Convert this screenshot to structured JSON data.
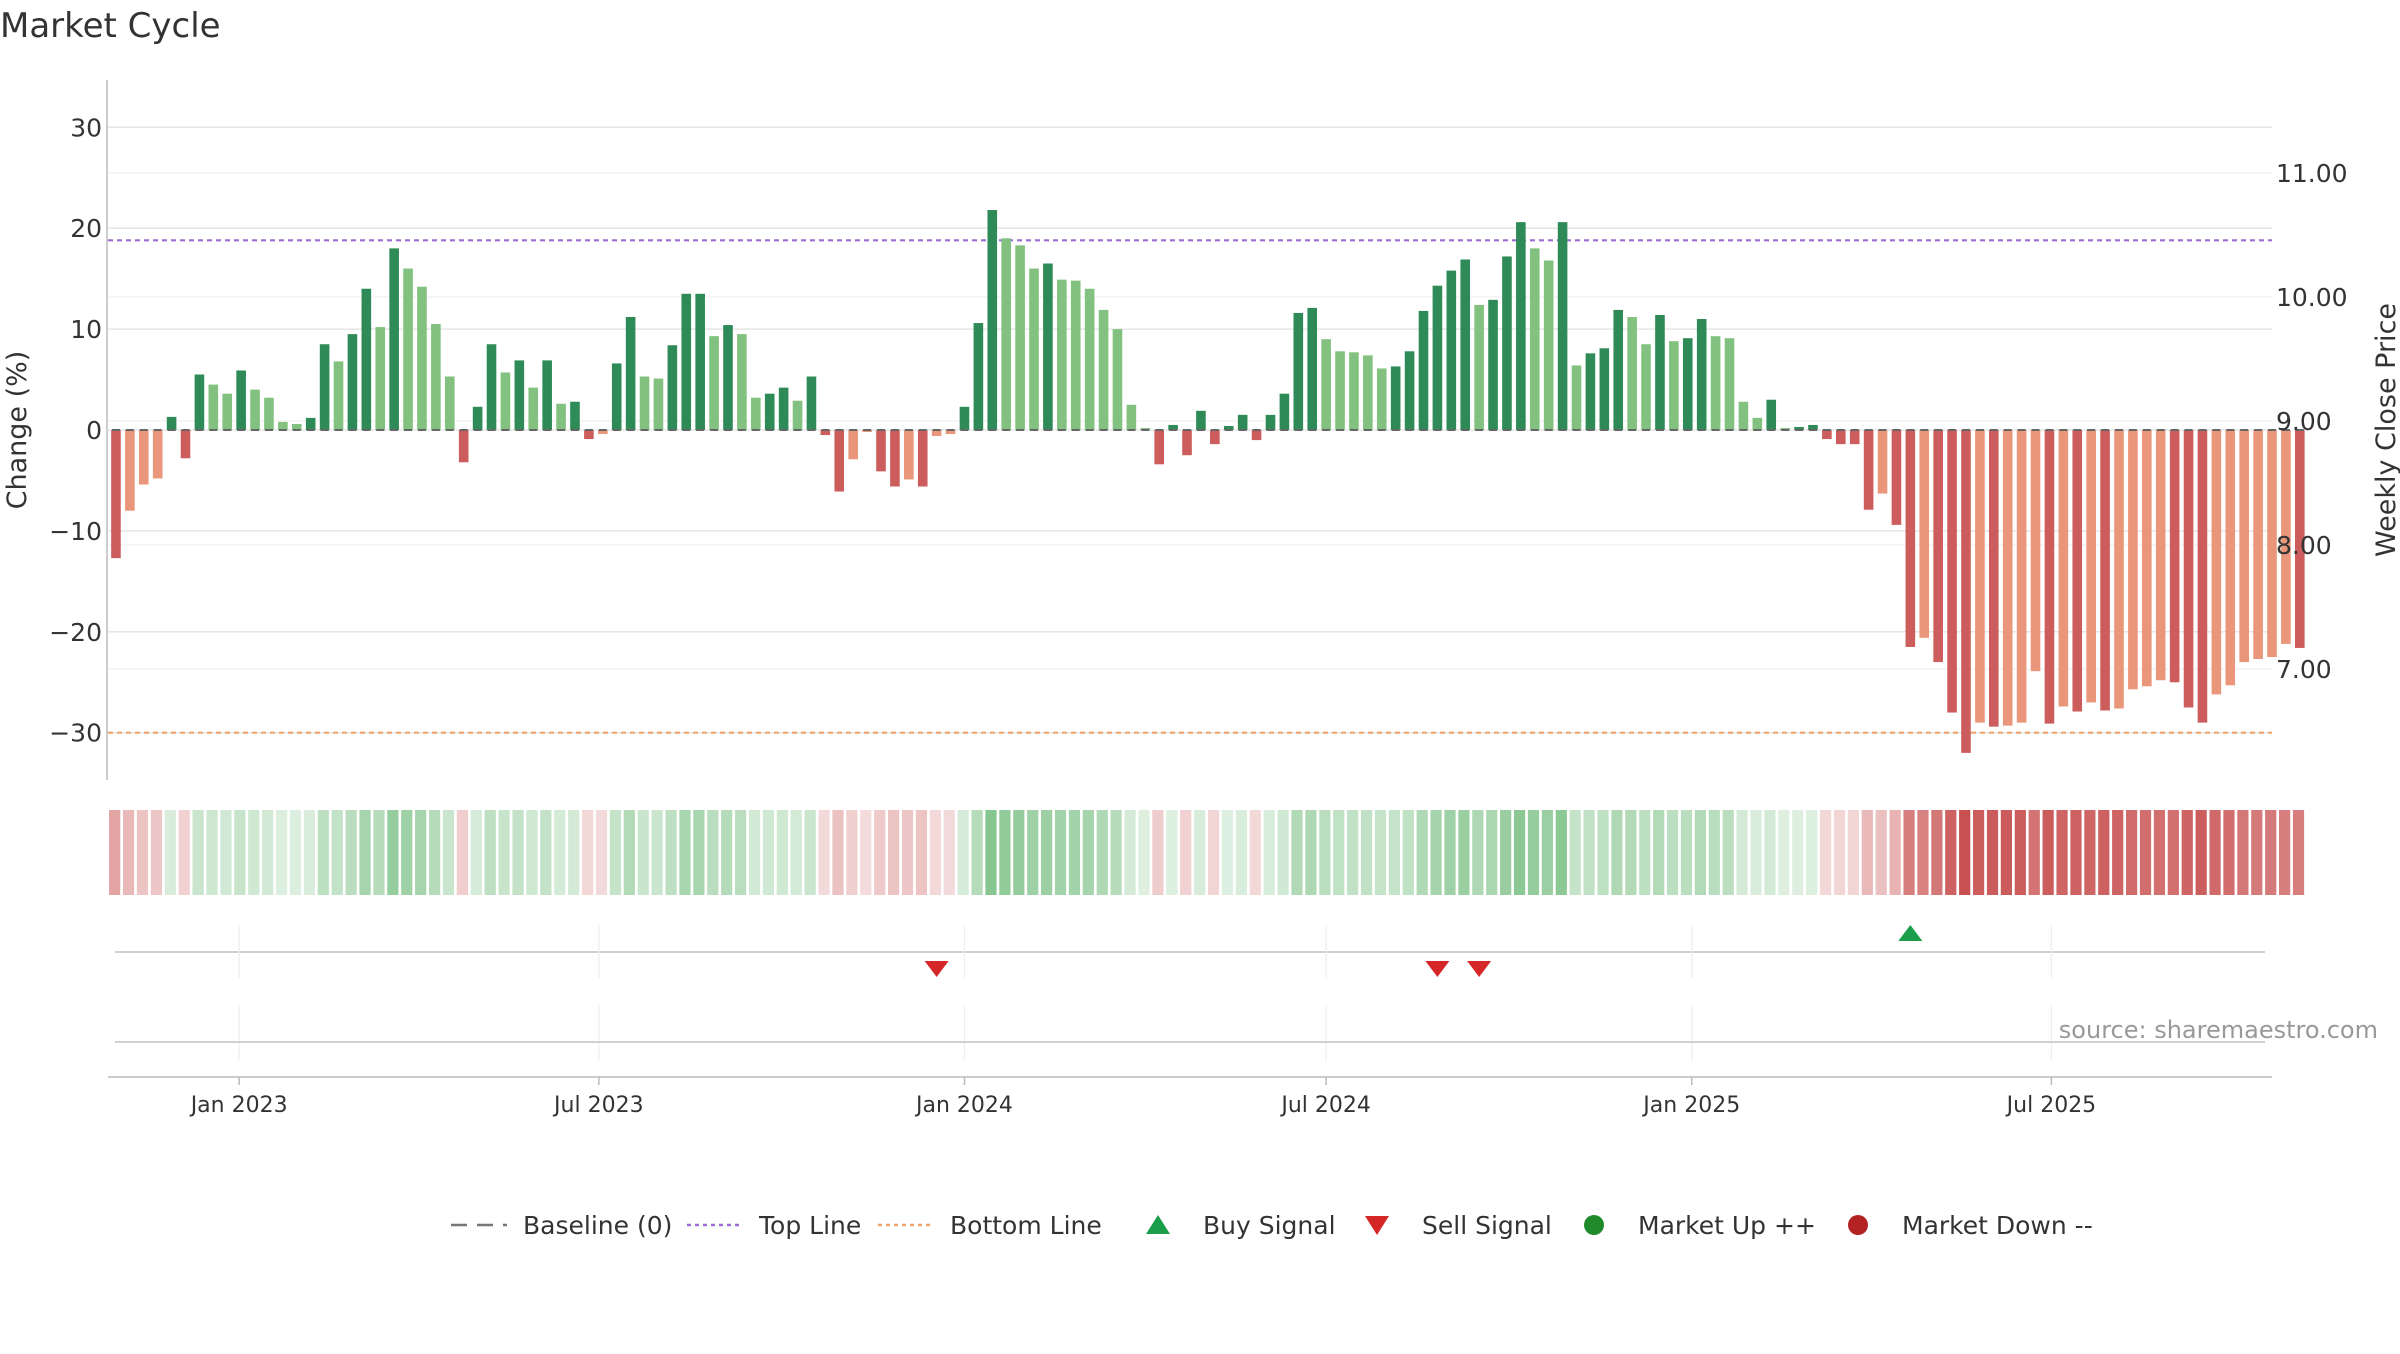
{
  "chart_data": {
    "type": "bar",
    "title": "Market Cycle",
    "ylabel": "Change (%)",
    "y2label": "Weekly Close Price",
    "ylim": [
      -35,
      35
    ],
    "y2lim": [
      6.0,
      11.6
    ],
    "yticks": [
      30,
      20,
      10,
      0,
      -10,
      -20,
      -30
    ],
    "yticklabels": [
      "30",
      "20",
      "10",
      "0",
      "−10",
      "−20",
      "−30"
    ],
    "y2ticks": [
      11.0,
      10.0,
      9.0,
      8.0,
      7.0
    ],
    "y2ticklabels": [
      "11.00",
      "10.00",
      "9.00",
      "8.00",
      "7.00"
    ],
    "xlim": [
      "2022-10-27",
      "2025-10-20"
    ],
    "xticks": [
      "2023-01-01",
      "2023-07-01",
      "2024-01-01",
      "2024-07-01",
      "2025-01-01",
      "2025-07-01"
    ],
    "xticklabels": [
      "Jan 2023",
      "Jul 2023",
      "Jan 2024",
      "Jul 2024",
      "Jan 2025",
      "Jul 2025"
    ],
    "first_week": "2022-10-31",
    "top_line": 18.8,
    "bottom_line": -30,
    "grid": true,
    "legend_position": "bottom",
    "source": "source: sharemaestro.com",
    "values": [
      -12.7,
      -8.0,
      -5.4,
      -4.8,
      1.3,
      -2.8,
      5.5,
      4.5,
      3.6,
      5.9,
      4.0,
      3.2,
      0.8,
      0.6,
      1.2,
      8.5,
      6.8,
      9.5,
      14.0,
      10.2,
      18.0,
      16.0,
      14.2,
      10.5,
      5.3,
      -3.2,
      2.3,
      8.5,
      5.7,
      6.9,
      4.2,
      6.9,
      2.6,
      2.8,
      -0.9,
      -0.4,
      6.6,
      11.2,
      5.3,
      5.1,
      8.4,
      13.5,
      13.5,
      9.3,
      10.4,
      9.5,
      3.2,
      3.6,
      4.2,
      2.9,
      5.3,
      -0.5,
      -6.1,
      -2.9,
      -0.2,
      -4.1,
      -5.6,
      -4.9,
      -5.6,
      -0.6,
      -0.4,
      2.3,
      10.6,
      21.8,
      19.0,
      18.3,
      16.0,
      16.5,
      14.9,
      14.8,
      14.0,
      11.9,
      10.0,
      2.5,
      0.2,
      -3.4,
      0.5,
      -2.5,
      1.9,
      -1.4,
      0.4,
      1.5,
      -1.0,
      1.5,
      3.6,
      11.6,
      12.1,
      9.0,
      7.8,
      7.7,
      7.4,
      6.1,
      6.3,
      7.8,
      11.8,
      14.3,
      15.8,
      16.9,
      12.4,
      12.9,
      17.2,
      20.6,
      18.0,
      16.8,
      20.6,
      6.4,
      7.6,
      8.1,
      11.9,
      11.2,
      8.5,
      11.4,
      8.8,
      9.1,
      11.0,
      9.3,
      9.1,
      2.8,
      1.2,
      3.0,
      0.2,
      0.3,
      0.5,
      -0.9,
      -1.4,
      -1.4,
      -7.9,
      -6.3,
      -9.4,
      -21.5,
      -20.6,
      -23.0,
      -28.0,
      -32.0,
      -29.0,
      -29.4,
      -29.3,
      -29.0,
      -23.9,
      -29.1,
      -27.4,
      -27.9,
      -27.0,
      -27.8,
      -27.6,
      -25.7,
      -25.4,
      -24.8,
      -25.0,
      -27.5,
      -29.0,
      -26.2,
      -25.3,
      -23.0,
      -22.7,
      -22.5,
      -21.2,
      -21.6
    ],
    "signals": [
      {
        "date": "2023-12-18",
        "type": "sell"
      },
      {
        "date": "2024-08-26",
        "type": "sell"
      },
      {
        "date": "2024-09-16",
        "type": "sell"
      },
      {
        "date": "2025-04-21",
        "type": "buy"
      }
    ],
    "legend": [
      {
        "label": "Baseline (0)",
        "kind": "line",
        "color": "#777777",
        "dash": "dash"
      },
      {
        "label": "Top Line",
        "kind": "line",
        "color": "#9b6cd0",
        "dash": "dot"
      },
      {
        "label": "Bottom Line",
        "kind": "line",
        "color": "#f0a36e",
        "dash": "dot"
      },
      {
        "label": "Buy Signal",
        "kind": "triangle-up",
        "color": "#1a9e4a"
      },
      {
        "label": "Sell Signal",
        "kind": "triangle-down",
        "color": "#d62728"
      },
      {
        "label": "Market Up ++",
        "kind": "circle",
        "color": "#1f8a2a"
      },
      {
        "label": "Market Down --",
        "kind": "circle",
        "color": "#b22222"
      }
    ],
    "colors": {
      "up_strong": "#2e8b57",
      "up_light": "#82c17f",
      "down_strong": "#cd5c5c",
      "down_light": "#e9967a",
      "grid": "#e6e6e6",
      "axis": "#bbbbbb",
      "text": "#333333"
    }
  }
}
